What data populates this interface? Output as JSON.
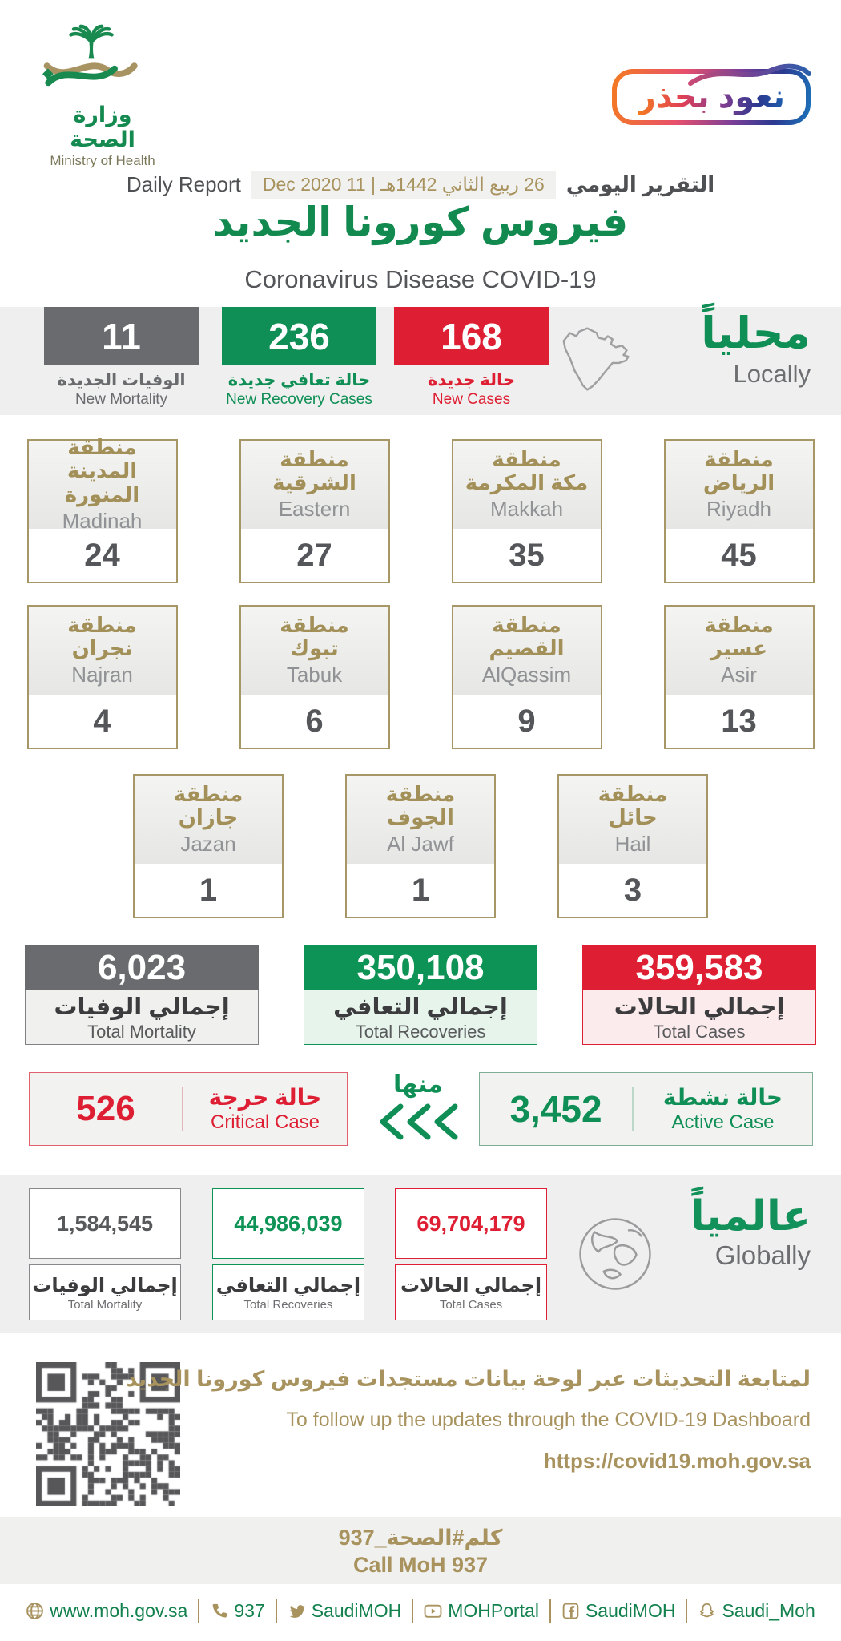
{
  "colors": {
    "green": "#0F8F55",
    "red": "#DE1F33",
    "gray": "#6A6B6E",
    "gold": "#A8935F"
  },
  "brand": {
    "logo_ar": "وزارة الصحة",
    "logo_en": "Ministry of Health",
    "badge": "نعود بحذر"
  },
  "header": {
    "report_ar": "التقرير اليومي",
    "date_hijri": "26 ربيع الثاني 1442هـ",
    "date_sep": "|",
    "date_greg": "11 Dec 2020",
    "report_en": "Daily Report",
    "title_ar": "فيروس كورونا الجديد",
    "title_en": "Coronavirus Disease COVID-19"
  },
  "local": {
    "heading_ar": "محلياً",
    "heading_en": "Locally",
    "new_mortality": {
      "value": "11",
      "ar": "الوفيات الجديدة",
      "en": "New Mortality"
    },
    "new_recoveries": {
      "value": "236",
      "ar": "حالة تعافي جديدة",
      "en": "New Recovery Cases"
    },
    "new_cases": {
      "value": "168",
      "ar": "حالة جديدة",
      "en": "New Cases"
    },
    "regions_row1": [
      {
        "ar": "منطقة\nالرياض",
        "en": "Riyadh",
        "value": "45"
      },
      {
        "ar": "منطقة\nمكة المكرمة",
        "en": "Makkah",
        "value": "35"
      },
      {
        "ar": "منطقة\nالشرقية",
        "en": "Eastern",
        "value": "27"
      },
      {
        "ar": "منطقة\nالمدينة المنورة",
        "en": "Madinah",
        "value": "24"
      }
    ],
    "regions_row2": [
      {
        "ar": "منطقة\nعسير",
        "en": "Asir",
        "value": "13"
      },
      {
        "ar": "منطقة\nالقصيم",
        "en": "AlQassim",
        "value": "9"
      },
      {
        "ar": "منطقة\nتبوك",
        "en": "Tabuk",
        "value": "6"
      },
      {
        "ar": "منطقة\nنجران",
        "en": "Najran",
        "value": "4"
      }
    ],
    "regions_row3": [
      {
        "ar": "منطقة\nحائل",
        "en": "Hail",
        "value": "3"
      },
      {
        "ar": "منطقة\nالجوف",
        "en": "Al Jawf",
        "value": "1"
      },
      {
        "ar": "منطقة\nجازان",
        "en": "Jazan",
        "value": "1"
      }
    ],
    "total_cases": {
      "value": "359,583",
      "ar": "إجمالي الحالات",
      "en": "Total Cases"
    },
    "total_recoveries": {
      "value": "350,108",
      "ar": "إجمالي التعافي",
      "en": "Total Recoveries"
    },
    "total_mortality": {
      "value": "6,023",
      "ar": "إجمالي الوفيات",
      "en": "Total Mortality"
    },
    "active": {
      "value": "3,452",
      "ar": "حالة نشطة",
      "en": "Active Case"
    },
    "minha": "منها",
    "critical": {
      "value": "526",
      "ar": "حالة حرجة",
      "en": "Critical Case"
    }
  },
  "global": {
    "heading_ar": "عالمياً",
    "heading_en": "Globally",
    "total_cases": {
      "value": "69,704,179",
      "ar": "إجمالي الحالات",
      "en": "Total Cases"
    },
    "total_recoveries": {
      "value": "44,986,039",
      "ar": "إجمالي التعافي",
      "en": "Total Recoveries"
    },
    "total_mortality": {
      "value": "1,584,545",
      "ar": "إجمالي الوفيات",
      "en": "Total Mortality"
    }
  },
  "dashboard": {
    "ar": "لمتابعة التحديثات عبر لوحة بيانات مستجدات فيروس كورونا الجديد",
    "en": "To follow up the updates through the COVID-19 Dashboard",
    "url": "https://covid19.moh.gov.sa"
  },
  "call": {
    "ar": "كلم#الصحة_937",
    "en": "Call MoH 937"
  },
  "footer": {
    "links": [
      {
        "label": "www.moh.gov.sa"
      },
      {
        "label": "937"
      },
      {
        "label": "SaudiMOH"
      },
      {
        "label": "MOHPortal"
      },
      {
        "label": "SaudiMOH"
      },
      {
        "label": "Saudi_Moh"
      }
    ]
  }
}
